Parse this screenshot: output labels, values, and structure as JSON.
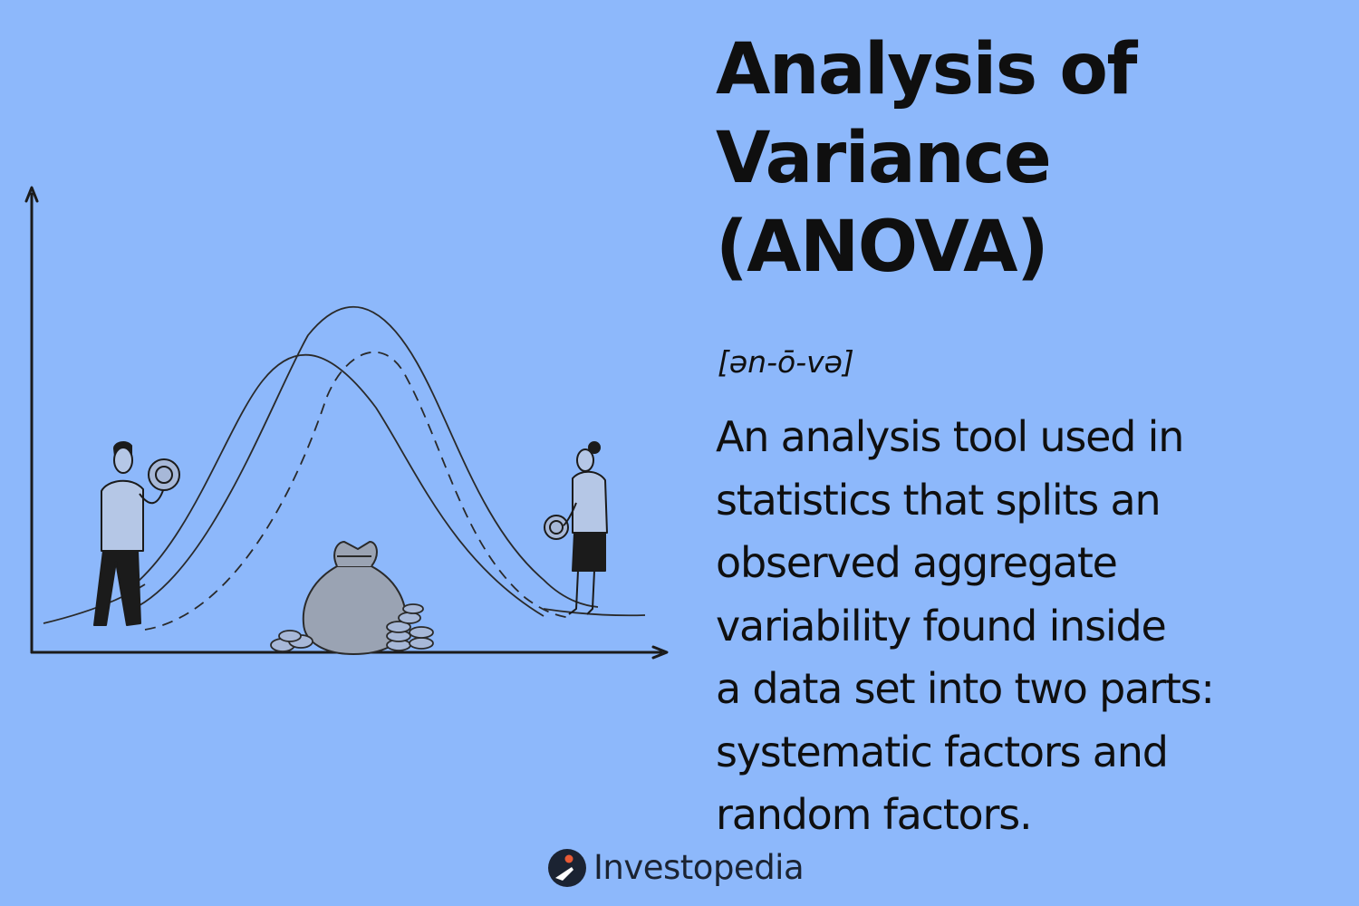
{
  "page": {
    "background_color": "#8db8fb",
    "ink_color": "#0f0f0f"
  },
  "title": {
    "lines": [
      "Analysis of",
      "Variance",
      "(ANOVA)"
    ]
  },
  "pronunciation": "[ən-ō-və]",
  "definition": {
    "lines": [
      "An analysis tool used in",
      "statistics that splits an",
      "observed aggregate",
      "variability found inside",
      "a data set into two parts:",
      "systematic factors and",
      "random factors."
    ]
  },
  "illustration": {
    "icons": [
      "chart-axes",
      "bell-curve-left",
      "bell-curve-right",
      "bell-curve-dashed",
      "money-bag-icon",
      "coin-stack-icon",
      "man-holding-coin-icon",
      "woman-holding-coin-icon"
    ]
  },
  "brand": {
    "name": "Investopedia",
    "logo_icon": "investopedia-logo-icon",
    "logo_color": "#1b2332",
    "logo_accent": "#e85a35"
  }
}
